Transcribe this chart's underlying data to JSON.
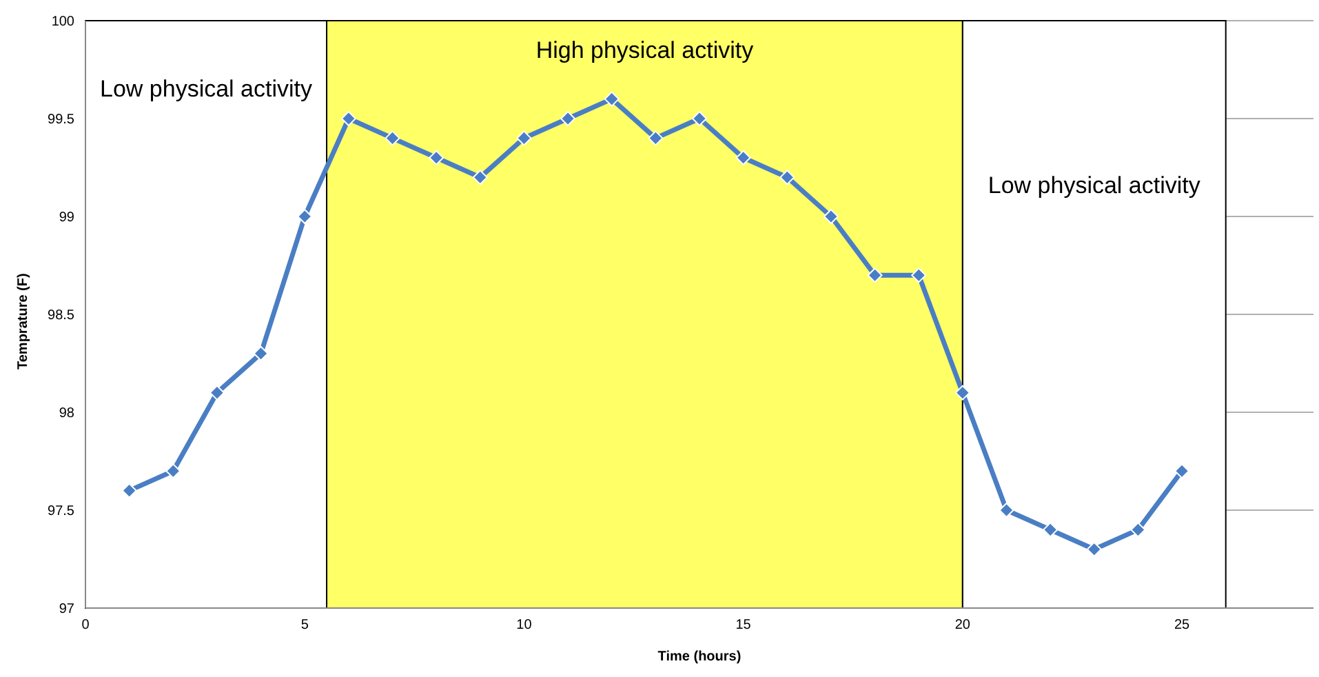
{
  "chart_data": {
    "type": "line",
    "xlabel": "Time (hours)",
    "ylabel": "Temprature (F)",
    "x": [
      1,
      2,
      3,
      4,
      5,
      6,
      7,
      8,
      9,
      10,
      11,
      12,
      13,
      14,
      15,
      16,
      17,
      18,
      19,
      20,
      21,
      22,
      23,
      24,
      25
    ],
    "series": [
      {
        "color": "#4a7ec4",
        "values": [
          97.6,
          97.7,
          98.1,
          98.3,
          99.0,
          99.5,
          99.4,
          99.3,
          99.2,
          99.4,
          99.5,
          99.6,
          99.4,
          99.5,
          99.3,
          99.2,
          99.0,
          98.7,
          98.7,
          98.1,
          97.5,
          97.4,
          97.3,
          97.4,
          97.7
        ]
      }
    ],
    "xlim": [
      0,
      28
    ],
    "xticks": [
      0,
      5,
      10,
      15,
      20,
      25
    ],
    "ylim": [
      97,
      100
    ],
    "yticks": [
      97,
      97.5,
      98,
      98.5,
      99,
      99.5,
      100
    ],
    "bands": [
      {
        "axis": "x",
        "from": 0,
        "to": 5.5,
        "label": "Low physical activity",
        "color": "#ffffff"
      },
      {
        "axis": "x",
        "from": 5.5,
        "to": 20,
        "label": "High physical activity",
        "color": "#ffff66"
      },
      {
        "axis": "x",
        "from": 20,
        "to": 26,
        "label": "Low physical activity",
        "color": "#ffffff"
      }
    ],
    "grid": "y",
    "marker": "diamond",
    "line_style": "solid",
    "legend": false
  }
}
